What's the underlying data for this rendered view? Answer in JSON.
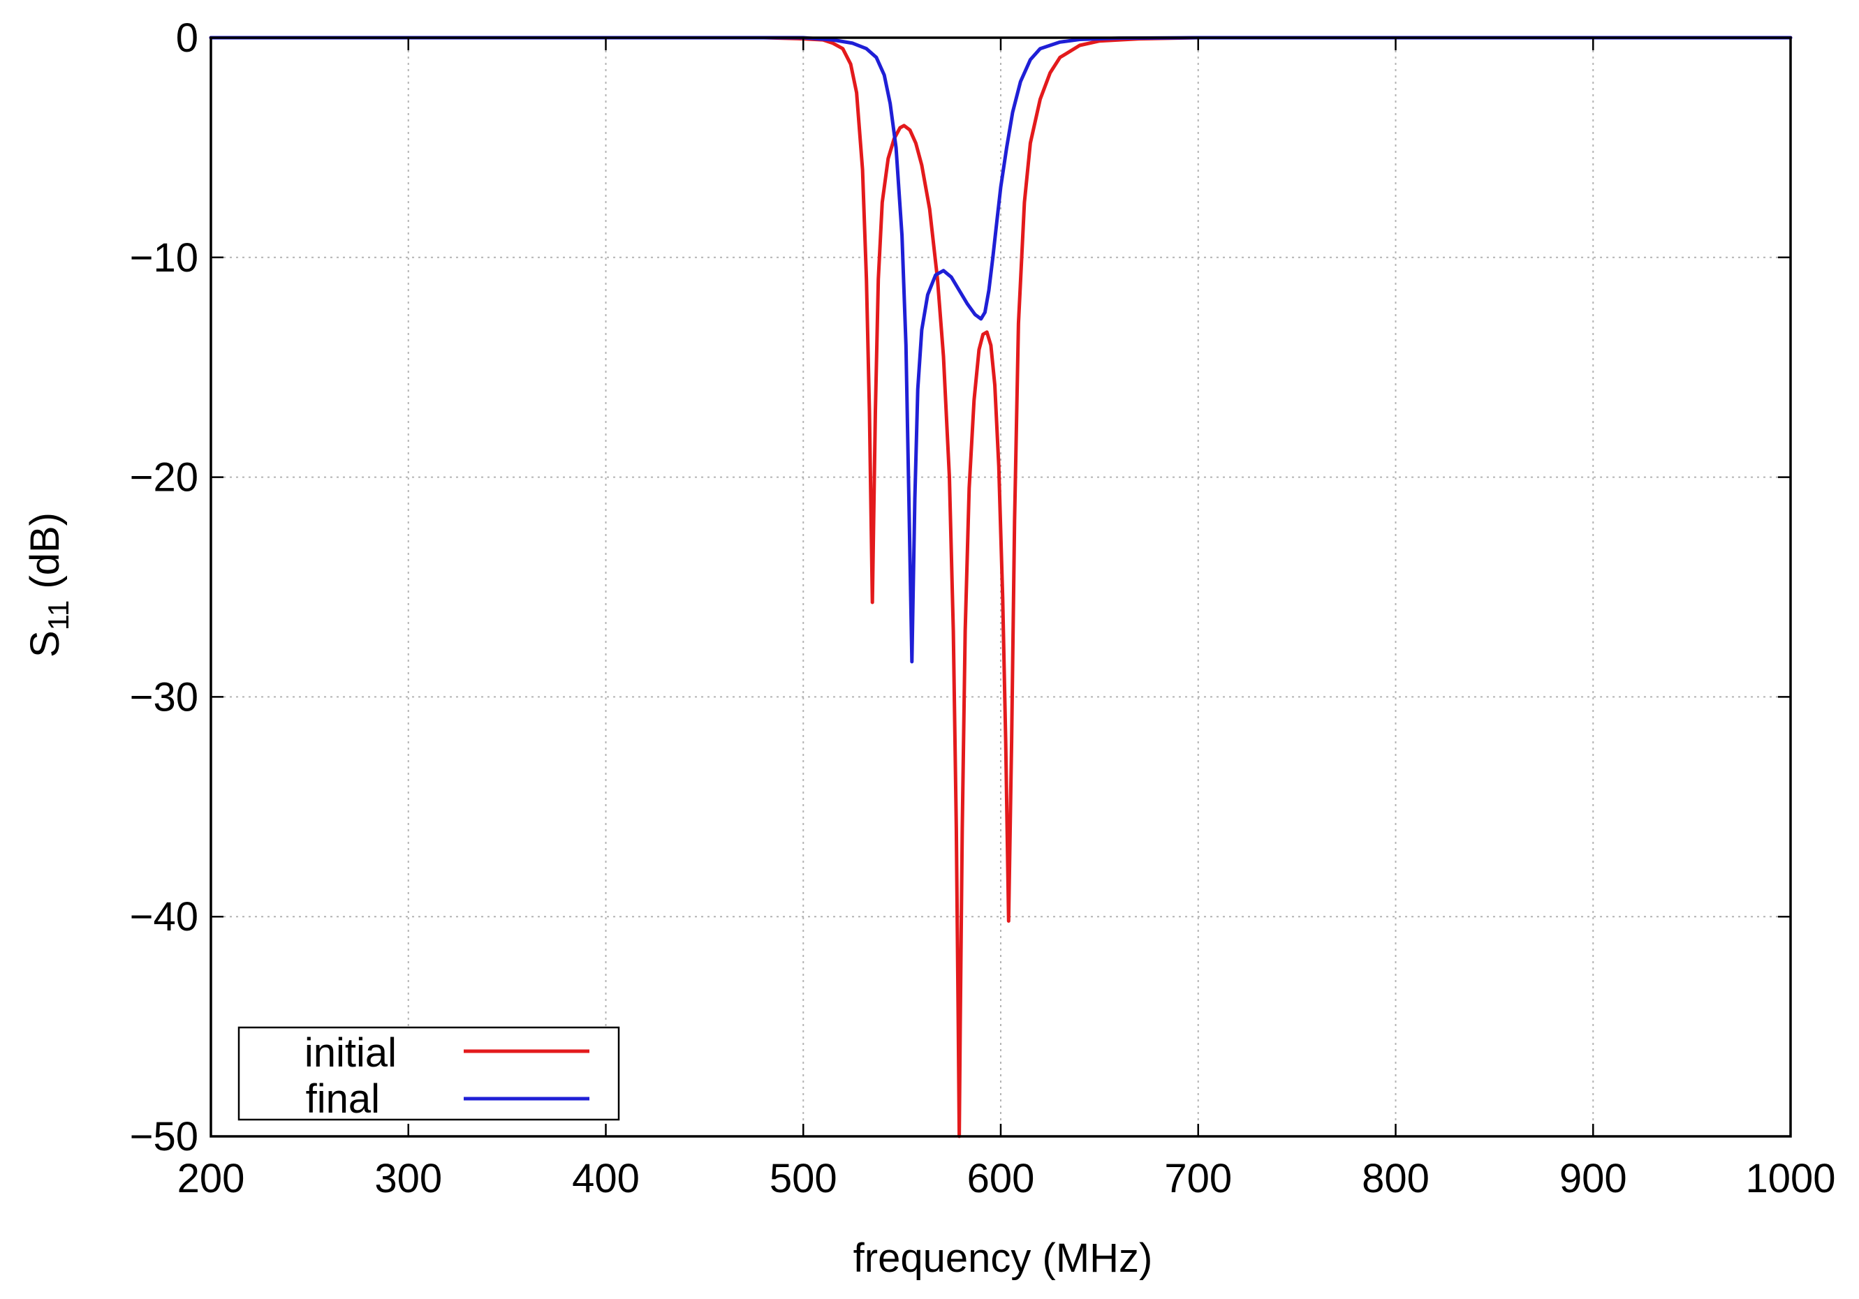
{
  "chart_data": {
    "type": "line",
    "title": "",
    "xlabel": "frequency (MHz)",
    "ylabel": {
      "base": "S",
      "subscript": "11",
      "suffix": " (dB)"
    },
    "xlim": [
      200,
      1000
    ],
    "ylim": [
      -50,
      0
    ],
    "xticks": [
      200,
      300,
      400,
      500,
      600,
      700,
      800,
      900,
      1000
    ],
    "yticks": [
      0,
      -10,
      -20,
      -30,
      -40,
      -50
    ],
    "xtick_labels": [
      "200",
      "300",
      "400",
      "500",
      "600",
      "700",
      "800",
      "900",
      "1000"
    ],
    "ytick_labels": [
      "0",
      "−10",
      "−20",
      "−30",
      "−40",
      "−50"
    ],
    "grid": true,
    "legend": {
      "placement": "bottom-left",
      "entries": [
        "initial",
        "final"
      ]
    },
    "series": [
      {
        "name": "initial",
        "color": "#e31a1c",
        "points": [
          [
            200,
            0
          ],
          [
            480,
            0
          ],
          [
            500,
            -0.05
          ],
          [
            510,
            -0.1
          ],
          [
            515,
            -0.25
          ],
          [
            520,
            -0.5
          ],
          [
            524,
            -1.2
          ],
          [
            527,
            -2.5
          ],
          [
            530,
            -6.0
          ],
          [
            532,
            -11.0
          ],
          [
            533.5,
            -17.0
          ],
          [
            535,
            -25.7
          ],
          [
            536.5,
            -17.0
          ],
          [
            538,
            -11.0
          ],
          [
            540,
            -7.5
          ],
          [
            543,
            -5.5
          ],
          [
            546,
            -4.6
          ],
          [
            549,
            -4.1
          ],
          [
            551,
            -4.0
          ],
          [
            554,
            -4.2
          ],
          [
            557,
            -4.8
          ],
          [
            560,
            -5.8
          ],
          [
            564,
            -7.8
          ],
          [
            568,
            -11.0
          ],
          [
            571,
            -14.5
          ],
          [
            574,
            -20.0
          ],
          [
            576,
            -27.0
          ],
          [
            577.5,
            -36.0
          ],
          [
            578.5,
            -45.0
          ],
          [
            579,
            -50.0
          ],
          [
            579.5,
            -45.0
          ],
          [
            580.5,
            -36.0
          ],
          [
            582,
            -27.0
          ],
          [
            584,
            -20.5
          ],
          [
            586.5,
            -16.5
          ],
          [
            589,
            -14.2
          ],
          [
            591,
            -13.5
          ],
          [
            593,
            -13.4
          ],
          [
            595,
            -14.0
          ],
          [
            597,
            -15.8
          ],
          [
            599,
            -19.5
          ],
          [
            601,
            -25.5
          ],
          [
            602.5,
            -32.0
          ],
          [
            604,
            -40.2
          ],
          [
            605.5,
            -32.0
          ],
          [
            607,
            -22.0
          ],
          [
            609,
            -13.0
          ],
          [
            612,
            -7.5
          ],
          [
            615,
            -4.8
          ],
          [
            620,
            -2.8
          ],
          [
            625,
            -1.6
          ],
          [
            630,
            -0.9
          ],
          [
            640,
            -0.35
          ],
          [
            650,
            -0.15
          ],
          [
            670,
            -0.05
          ],
          [
            700,
            0
          ],
          [
            1000,
            0
          ]
        ]
      },
      {
        "name": "final",
        "color": "#1f1fd6",
        "points": [
          [
            200,
            0
          ],
          [
            500,
            0
          ],
          [
            515,
            -0.1
          ],
          [
            525,
            -0.25
          ],
          [
            532,
            -0.5
          ],
          [
            537,
            -0.9
          ],
          [
            541,
            -1.7
          ],
          [
            544,
            -3.0
          ],
          [
            547,
            -5.0
          ],
          [
            550,
            -9.0
          ],
          [
            552,
            -14.0
          ],
          [
            553.5,
            -21.0
          ],
          [
            555,
            -28.4
          ],
          [
            556.5,
            -21.0
          ],
          [
            558,
            -16.0
          ],
          [
            560,
            -13.3
          ],
          [
            563,
            -11.7
          ],
          [
            567,
            -10.8
          ],
          [
            571,
            -10.6
          ],
          [
            575,
            -10.9
          ],
          [
            579,
            -11.5
          ],
          [
            583,
            -12.1
          ],
          [
            587,
            -12.6
          ],
          [
            590,
            -12.8
          ],
          [
            592,
            -12.5
          ],
          [
            594,
            -11.5
          ],
          [
            596,
            -10.0
          ],
          [
            598,
            -8.4
          ],
          [
            600,
            -6.8
          ],
          [
            603,
            -5.0
          ],
          [
            606,
            -3.4
          ],
          [
            610,
            -2.0
          ],
          [
            615,
            -1.0
          ],
          [
            620,
            -0.5
          ],
          [
            630,
            -0.2
          ],
          [
            640,
            -0.08
          ],
          [
            660,
            -0.02
          ],
          [
            700,
            0
          ],
          [
            1000,
            0
          ]
        ]
      }
    ]
  }
}
